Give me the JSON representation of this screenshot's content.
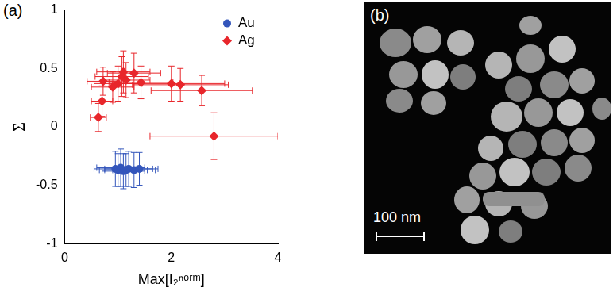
{
  "chart_data": {
    "type": "scatter",
    "title": "(a)",
    "x_label": "Max[I₂ⁿᵒʳᵐ]",
    "y_label": "Σ",
    "xlim": [
      0,
      4
    ],
    "xticks": [
      0,
      2,
      4
    ],
    "ylim": [
      -1,
      1
    ],
    "yticks": [
      -1,
      -0.5,
      0,
      0.5,
      1
    ],
    "grid": false,
    "legend": "upper right",
    "series": [
      {
        "name": "Au",
        "color": "#3355bb",
        "marker": "circle",
        "x": [
          0.95,
          1.0,
          1.05,
          1.1,
          1.15,
          1.2,
          1.3,
          1.4
        ],
        "values": [
          -0.36,
          -0.37,
          -0.35,
          -0.38,
          -0.37,
          -0.36,
          -0.37,
          -0.36
        ],
        "x_error": [
          0.4,
          0.35,
          0.45,
          0.4,
          0.4,
          0.45,
          0.4,
          0.35
        ],
        "y_error": [
          0.15,
          0.14,
          0.16,
          0.15,
          0.14,
          0.15,
          0.15,
          0.14
        ]
      },
      {
        "name": "Ag",
        "color": "#e8262b",
        "marker": "diamond",
        "x": [
          0.63,
          0.7,
          0.72,
          0.9,
          1.0,
          1.07,
          1.1,
          1.15,
          1.3,
          1.43,
          2.0,
          2.17,
          2.57,
          2.8
        ],
        "values": [
          0.08,
          0.22,
          0.39,
          0.34,
          0.37,
          0.43,
          0.47,
          0.4,
          0.46,
          0.38,
          0.37,
          0.36,
          0.31,
          -0.08
        ],
        "x_error": [
          0.15,
          0.2,
          0.3,
          0.4,
          0.45,
          0.5,
          0.5,
          0.45,
          0.5,
          0.6,
          1.0,
          0.9,
          0.95,
          1.2
        ],
        "y_error": [
          0.12,
          0.13,
          0.12,
          0.13,
          0.15,
          0.17,
          0.18,
          0.15,
          0.17,
          0.14,
          0.15,
          0.14,
          0.13,
          0.2
        ]
      }
    ]
  },
  "image_panel": {
    "label": "(b)",
    "scale_bar": "100 nm"
  }
}
